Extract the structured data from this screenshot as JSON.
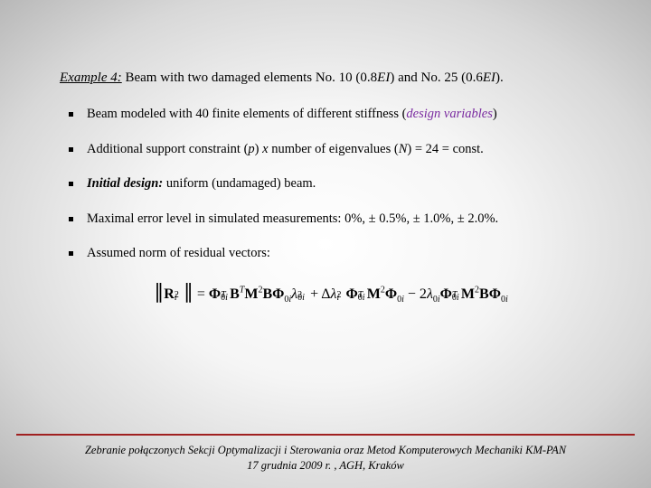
{
  "example": {
    "label": "Example 4:",
    "text_before": "Beam with two damaged elements  No. 10 (0.8",
    "ei1": "EI",
    "text_mid": ") and No. 25 (0.6",
    "ei2": "EI",
    "text_after": ")."
  },
  "bullets": {
    "b1_a": "Beam modeled with 40 finite elements of different stiffness (",
    "b1_dv": "design variables",
    "b1_b": ")",
    "b2_a": "Additional support constraint (",
    "b2_p": "p",
    "b2_b": ")  ",
    "b2_x": "x",
    "b2_c": "  number of eigenvalues (",
    "b2_n": "N",
    "b2_d": ") = 24 = const.",
    "b3_a": "Initial design:",
    "b3_b": " uniform (undamaged) beam.",
    "b4": "Maximal error level in simulated measurements: 0%,   ± 0.5%,   ± 1.0%,   ± 2.0%.",
    "b5": "Assumed norm of residual vectors:"
  },
  "formula": {
    "lhs_open": "∥",
    "lhs_R": "R",
    "lhs_close": "∥",
    "eq": " = ",
    "t1": "Φ",
    "t1b": "B",
    "t1c": "M",
    "t1d": "B",
    "t1e": "Φ",
    "lam": "λ",
    "plus": " + Δ",
    "t2a": "Φ",
    "t2b": "M",
    "t2c": "Φ",
    "minus": " − 2",
    "t3a": "Φ",
    "t3b": "M",
    "t3c": "B",
    "t3d": "Φ"
  },
  "footer": {
    "line1": "Zebranie połączonych Sekcji Optymalizacji i Sterowania oraz  Metod Komputerowych Mechaniki KM-PAN",
    "line2": "17 grudnia 2009 r. , AGH, Kraków"
  },
  "colors": {
    "rule": "#a02020",
    "design_var": "#7a2aa0",
    "text": "#000000"
  }
}
